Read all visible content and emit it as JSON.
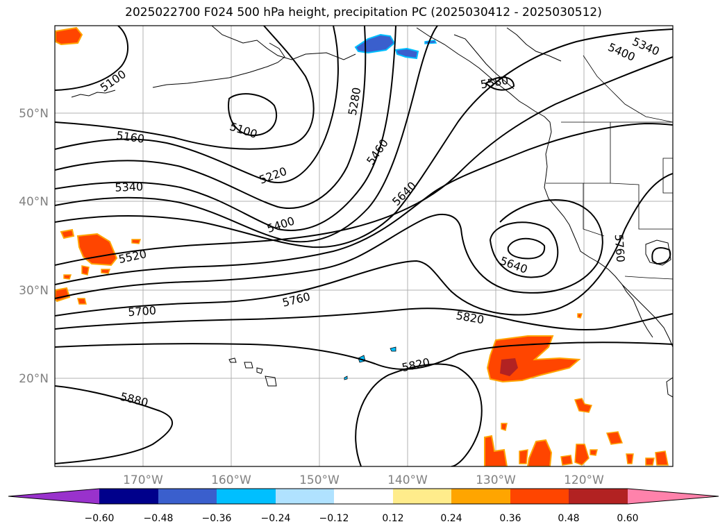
{
  "title": "2025022700 F024 500 hPa height, precipitation PC (2025030412 - 2025030512)",
  "map": {
    "lat_labels": [
      "50°N",
      "40°N",
      "30°N",
      "20°N"
    ],
    "lon_labels": [
      "170°W",
      "160°W",
      "150°W",
      "140°W",
      "130°W",
      "120°W"
    ],
    "contour_labels": [
      "5100",
      "5100",
      "5160",
      "5220",
      "5280",
      "5340",
      "5340",
      "5400",
      "5400",
      "5460",
      "5520",
      "5580",
      "5640",
      "5640",
      "5700",
      "5760",
      "5760",
      "5820",
      "5820",
      "5880"
    ]
  },
  "colorbar": {
    "ticks": [
      "−0.60",
      "−0.48",
      "−0.36",
      "−0.24",
      "−0.12",
      "0.12",
      "0.24",
      "0.36",
      "0.48",
      "0.60"
    ],
    "colors": [
      "#9932cc",
      "#00008b",
      "#3a5fcd",
      "#00bfff",
      "#b0e2ff",
      "#ffffff",
      "#ffec8b",
      "#ffa500",
      "#ff4500",
      "#b22222",
      "#ff82ab"
    ]
  }
}
